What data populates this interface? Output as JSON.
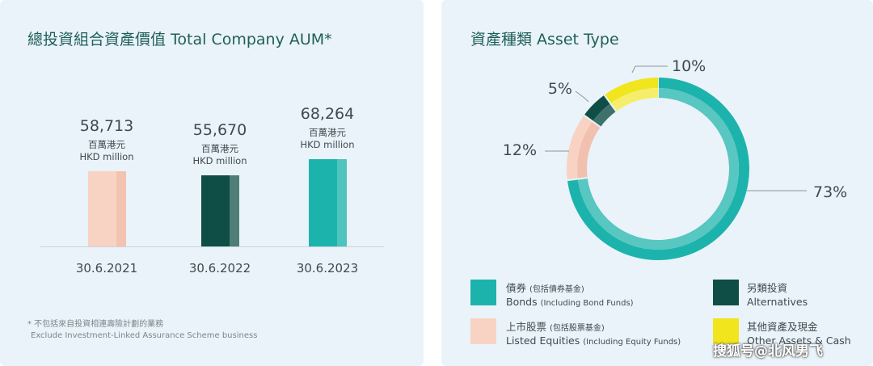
{
  "left_chart": {
    "title": "總投資組合資產價值 Total Company AUM*",
    "footnote_zh": "* 不包括來自投資相連壽險計劃的業務",
    "footnote_en": "Exclude Investment-Linked Assurance Scheme business"
  },
  "right_chart": {
    "title": "資產種類 Asset Type"
  },
  "watermark": "搜狐号@北风男飞",
  "chart_data": [
    {
      "type": "bar",
      "title": "總投資組合資產價值 Total Company AUM*",
      "categories": [
        "30.6.2021",
        "30.6.2022",
        "30.6.2023"
      ],
      "values": [
        58713,
        55670,
        68264
      ],
      "value_labels": [
        "58,713",
        "55,670",
        "68,264"
      ],
      "unit_zh": "百萬港元",
      "unit_en": "HKD million",
      "colors": [
        "#f8d3c4",
        "#0e4e47",
        "#1db3ad"
      ],
      "shade_colors": [
        "#f2c3b1",
        "#4f7d78",
        "#4fc3bd"
      ]
    },
    {
      "type": "pie",
      "title": "資產種類 Asset Type",
      "slices": [
        {
          "zh": "債券",
          "zh_note": "(包括債券基金)",
          "en": "Bonds",
          "en_note": "(Including Bond Funds)",
          "value": 73,
          "label": "73%",
          "color": "#1db3ad",
          "inner": "#58c6c1"
        },
        {
          "zh": "上市股票",
          "zh_note": "(包括股票基金)",
          "en": "Listed Equities",
          "en_note": "(Including Equity Funds)",
          "value": 12,
          "label": "12%",
          "color": "#f8d3c4",
          "inner": "#f2c0ae"
        },
        {
          "zh": "另類投資",
          "zh_note": "",
          "en": "Alternatives",
          "en_note": "",
          "value": 5,
          "label": "5%",
          "color": "#0e4e47",
          "inner": "#3f716c"
        },
        {
          "zh": "其他資產及現金",
          "zh_note": "",
          "en": "Other Assets & Cash",
          "en_note": "",
          "value": 10,
          "label": "10%",
          "color": "#f1e51d",
          "inner": "#f6ee6a"
        }
      ]
    }
  ]
}
